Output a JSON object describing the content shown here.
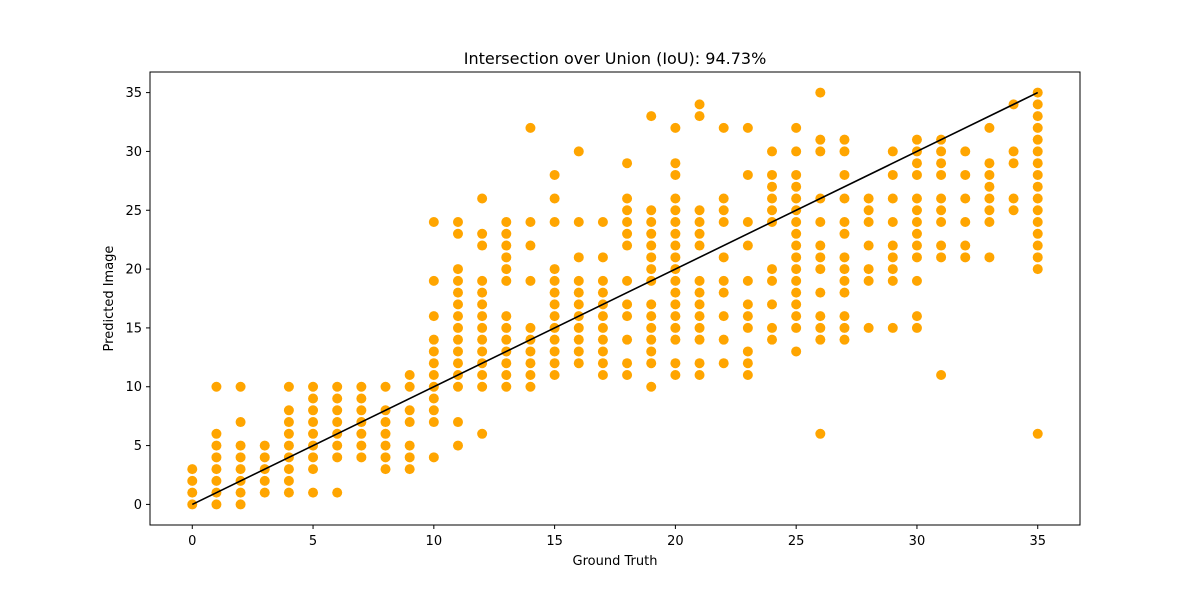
{
  "chart_data": {
    "type": "scatter",
    "title": "Intersection over Union (IoU): 94.73%",
    "xlabel": "Ground Truth",
    "ylabel": "Predicted Image",
    "xlim": [
      -1.75,
      36.75
    ],
    "ylim": [
      -1.75,
      36.75
    ],
    "xticks": [
      0,
      5,
      10,
      15,
      20,
      25,
      30,
      35
    ],
    "yticks": [
      0,
      5,
      10,
      15,
      20,
      25,
      30,
      35
    ],
    "grid": false,
    "colors": {
      "points": "#FFA500",
      "line": "#000000"
    },
    "reference_line": {
      "x": [
        0,
        35
      ],
      "y": [
        0,
        35
      ]
    },
    "columns": [
      [
        0,
        [
          0,
          1,
          2,
          3
        ]
      ],
      [
        1,
        [
          0,
          1,
          2,
          3,
          4,
          5,
          6,
          10
        ]
      ],
      [
        2,
        [
          0,
          1,
          2,
          3,
          4,
          5,
          7,
          10
        ]
      ],
      [
        3,
        [
          1,
          2,
          3,
          4,
          5
        ]
      ],
      [
        4,
        [
          1,
          2,
          3,
          4,
          5,
          6,
          7,
          8,
          10
        ]
      ],
      [
        5,
        [
          1,
          3,
          4,
          5,
          6,
          7,
          8,
          9,
          10
        ]
      ],
      [
        6,
        [
          1,
          4,
          5,
          6,
          7,
          8,
          9,
          10
        ]
      ],
      [
        7,
        [
          4,
          5,
          6,
          7,
          8,
          9,
          10
        ]
      ],
      [
        8,
        [
          3,
          4,
          5,
          6,
          7,
          8,
          10
        ]
      ],
      [
        9,
        [
          3,
          4,
          5,
          7,
          8,
          10,
          11
        ]
      ],
      [
        10,
        [
          4,
          7,
          8,
          9,
          10,
          11,
          12,
          13,
          14,
          16,
          19,
          24
        ]
      ],
      [
        11,
        [
          5,
          7,
          10,
          11,
          12,
          13,
          14,
          15,
          16,
          17,
          18,
          19,
          20,
          23,
          24
        ]
      ],
      [
        12,
        [
          6,
          10,
          11,
          12,
          13,
          14,
          15,
          16,
          17,
          18,
          19,
          22,
          23,
          26
        ]
      ],
      [
        13,
        [
          10,
          11,
          12,
          13,
          14,
          15,
          16,
          19,
          20,
          21,
          22,
          23,
          24
        ]
      ],
      [
        14,
        [
          10,
          11,
          12,
          13,
          14,
          15,
          19,
          22,
          24,
          32
        ]
      ],
      [
        15,
        [
          11,
          12,
          13,
          14,
          15,
          16,
          17,
          18,
          19,
          20,
          24,
          26,
          28
        ]
      ],
      [
        16,
        [
          12,
          13,
          14,
          15,
          16,
          17,
          18,
          19,
          21,
          24,
          30
        ]
      ],
      [
        17,
        [
          11,
          12,
          13,
          14,
          15,
          16,
          17,
          18,
          19,
          21,
          24
        ]
      ],
      [
        18,
        [
          11,
          12,
          14,
          16,
          17,
          19,
          22,
          23,
          24,
          25,
          26,
          29
        ]
      ],
      [
        19,
        [
          10,
          12,
          13,
          14,
          15,
          16,
          17,
          19,
          20,
          21,
          22,
          23,
          24,
          25,
          33
        ]
      ],
      [
        20,
        [
          11,
          12,
          14,
          15,
          16,
          17,
          18,
          19,
          20,
          21,
          22,
          23,
          24,
          25,
          26,
          28,
          29,
          32
        ]
      ],
      [
        21,
        [
          11,
          12,
          14,
          15,
          16,
          17,
          18,
          19,
          22,
          23,
          24,
          25,
          33,
          34
        ]
      ],
      [
        22,
        [
          12,
          14,
          16,
          18,
          19,
          21,
          24,
          25,
          26,
          32
        ]
      ],
      [
        23,
        [
          11,
          12,
          13,
          15,
          16,
          17,
          19,
          22,
          24,
          28,
          32
        ]
      ],
      [
        24,
        [
          14,
          15,
          17,
          19,
          20,
          24,
          25,
          26,
          27,
          28,
          30
        ]
      ],
      [
        25,
        [
          13,
          15,
          16,
          17,
          18,
          19,
          20,
          21,
          22,
          23,
          24,
          25,
          26,
          27,
          28,
          30,
          32
        ]
      ],
      [
        26,
        [
          6,
          14,
          15,
          16,
          18,
          20,
          21,
          22,
          24,
          26,
          30,
          31,
          35
        ]
      ],
      [
        27,
        [
          14,
          15,
          16,
          18,
          19,
          20,
          21,
          23,
          24,
          26,
          28,
          30,
          31
        ]
      ],
      [
        28,
        [
          15,
          19,
          20,
          22,
          24,
          25,
          26
        ]
      ],
      [
        29,
        [
          15,
          19,
          20,
          21,
          22,
          24,
          26,
          28,
          30
        ]
      ],
      [
        30,
        [
          15,
          16,
          19,
          21,
          22,
          23,
          24,
          25,
          26,
          28,
          29,
          30,
          31
        ]
      ],
      [
        31,
        [
          11,
          21,
          22,
          24,
          25,
          26,
          28,
          29,
          30,
          31
        ]
      ],
      [
        32,
        [
          21,
          22,
          24,
          26,
          28,
          30
        ]
      ],
      [
        33,
        [
          21,
          24,
          25,
          26,
          27,
          28,
          29,
          32
        ]
      ],
      [
        34,
        [
          25,
          26,
          29,
          30,
          34
        ]
      ],
      [
        35,
        [
          6,
          20,
          21,
          22,
          23,
          24,
          25,
          26,
          27,
          28,
          29,
          30,
          31,
          32,
          33,
          34,
          35
        ]
      ]
    ]
  }
}
